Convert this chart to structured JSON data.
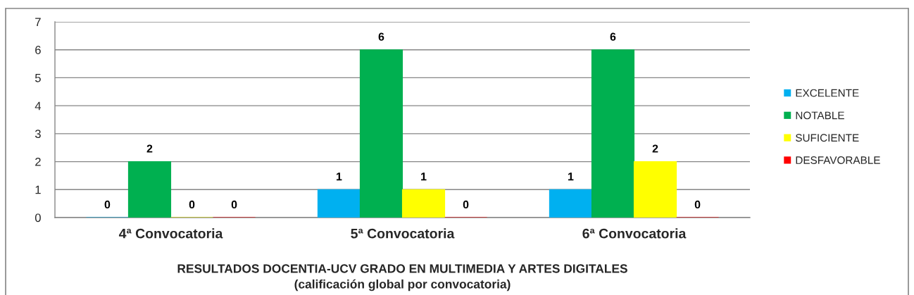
{
  "chart_data": {
    "type": "bar",
    "title": "RESULTADOS DOCENTIA-UCV GRADO EN MULTIMEDIA Y ARTES DIGITALES",
    "subtitle": "(calificación global por convocatoria)",
    "categories": [
      "4ª Convocatoria",
      "5ª Convocatoria",
      "6ª Convocatoria"
    ],
    "series": [
      {
        "name": "EXCELENTE",
        "color": "#00b0f0",
        "values": [
          0,
          1,
          1
        ]
      },
      {
        "name": "NOTABLE",
        "color": "#00b050",
        "values": [
          2,
          6,
          6
        ]
      },
      {
        "name": "SUFICIENTE",
        "color": "#ffff00",
        "values": [
          0,
          1,
          2
        ]
      },
      {
        "name": "DESFAVORABLE",
        "color": "#ff0000",
        "values": [
          0,
          0,
          0
        ]
      }
    ],
    "ylim": [
      0,
      7
    ],
    "yticks": [
      0,
      1,
      2,
      3,
      4,
      5,
      6,
      7
    ],
    "grid": "y",
    "legend": "right",
    "data_labels": true
  }
}
